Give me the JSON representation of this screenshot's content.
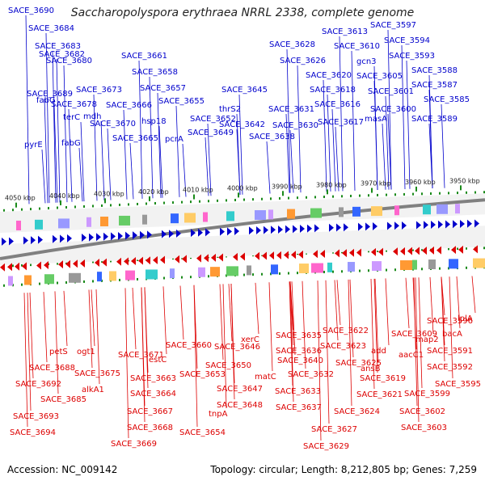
{
  "title": "Saccharopolyspora erythraea NRRL 2338, complete genome",
  "footer": {
    "accession": "Accession: NC_009142",
    "summary": "Topology: circular; Length: 8,212,805 bp; Genes: 7,259"
  },
  "colors": {
    "forward": "#0000cc",
    "reverse": "#dd0000",
    "tick": "#1a8a1a",
    "backbone": "#808080"
  },
  "kbp_ticks": [
    "4050 kbp",
    "4040 kbp",
    "4030 kbp",
    "4020 kbp",
    "4010 kbp",
    "4000 kbp",
    "3990 kbp",
    "3980 kbp",
    "3970 kbp",
    "3960 kbp",
    "3950 kbp"
  ],
  "forward_labels": [
    "SACE_3690",
    "SACE_3684",
    "SACE_3683",
    "SACE_3682",
    "SACE_3680",
    "SACE_3689",
    "SACE_3678",
    "terC",
    "fabG",
    "fabG",
    "pyrE",
    "SACE_3673",
    "mdh",
    "SACE_3670",
    "SACE_3666",
    "SACE_3665",
    "SACE_3661",
    "SACE_3658",
    "SACE_3657",
    "hsp18",
    "SACE_3655",
    "pcrA",
    "SACE_3652",
    "SACE_3649",
    "SACE_3645",
    "thrS2",
    "SACE_3642",
    "SACE_3638",
    "SACE_3628",
    "SACE_3626",
    "SACE_3631",
    "SACE_3630",
    "SACE_3620",
    "SACE_3618",
    "SACE_3616",
    "SACE_3617",
    "SACE_3613",
    "SACE_3610",
    "gcn3",
    "SACE_3605",
    "masA",
    "SACE_3601",
    "SACE_3600",
    "SACE_3597",
    "SACE_3594",
    "SACE_3593",
    "SACE_3588",
    "SACE_3587",
    "SACE_3585",
    "SACE_3589"
  ],
  "reverse_labels": [
    "petS",
    "SACE_3688",
    "SACE_3692",
    "SACE_3685",
    "SACE_3693",
    "SACE_3694",
    "ogt1",
    "SACE_3675",
    "alkA1",
    "SACE_3671",
    "SACE_3660",
    "estC",
    "SACE_3663",
    "SACE_3664",
    "SACE_3667",
    "SACE_3668",
    "SACE_3669",
    "SACE_3654",
    "SACE_3653",
    "tnpA",
    "SACE_3648",
    "SACE_3647",
    "SACE_3650",
    "SACE_3646",
    "xerC",
    "matC",
    "SACE_3640",
    "SACE_3635",
    "SACE_3636",
    "SACE_3632",
    "SACE_3633",
    "SACE_3637",
    "SACE_3627",
    "SACE_3629",
    "SACE_3622",
    "SACE_3623",
    "SACE_3625",
    "SACE_3624",
    "SACE_3621",
    "ansB",
    "SACE_3619",
    "add",
    "SACE_3609",
    "aacC1",
    "map2",
    "SACE_3596",
    "bacA",
    "lplA",
    "SACE_3591",
    "SACE_3592",
    "SACE_3595",
    "SACE_3599",
    "SACE_3602",
    "SACE_3603"
  ]
}
